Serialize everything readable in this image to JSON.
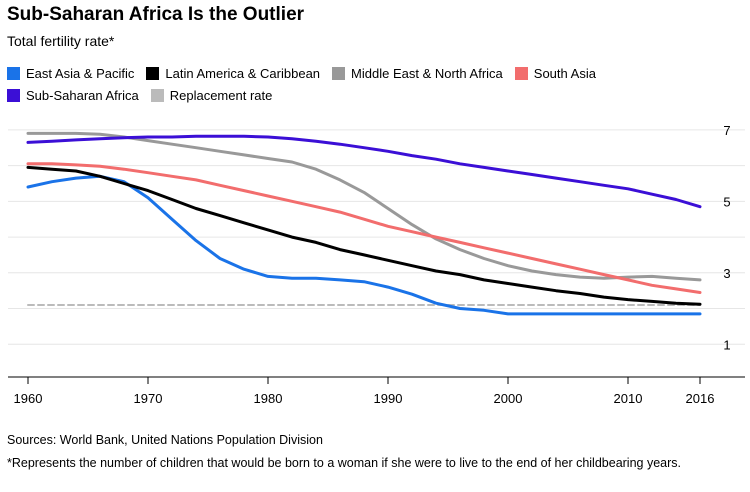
{
  "title": "Sub-Saharan Africa Is the Outlier",
  "subtitle": "Total fertility rate*",
  "source": "Sources: World Bank, United Nations Population Division",
  "footnote": "*Represents the number of children that would be born to a woman if she were to live to the end of her childbearing years.",
  "chart_data": {
    "type": "line",
    "title": "Sub-Saharan Africa Is the Outlier",
    "ylabel": "Total fertility rate*",
    "xlabel": "",
    "xlim": [
      1960,
      2016
    ],
    "ylim": [
      0,
      7.5
    ],
    "x_ticks": [
      1960,
      1970,
      1980,
      1990,
      2000,
      2010,
      2016
    ],
    "y_ticks": [
      1,
      3,
      5,
      7
    ],
    "grid": true,
    "legend_position": "top",
    "series": [
      {
        "name": "East Asia & Pacific",
        "color": "#1a73e8",
        "style": "solid",
        "x": [
          1960,
          1962,
          1964,
          1966,
          1968,
          1970,
          1972,
          1974,
          1976,
          1978,
          1980,
          1982,
          1984,
          1986,
          1988,
          1990,
          1992,
          1994,
          1996,
          1998,
          2000,
          2005,
          2010,
          2016
        ],
        "y": [
          5.4,
          5.55,
          5.65,
          5.7,
          5.55,
          5.1,
          4.5,
          3.9,
          3.4,
          3.1,
          2.9,
          2.85,
          2.85,
          2.8,
          2.75,
          2.6,
          2.4,
          2.15,
          2.0,
          1.95,
          1.85,
          1.85,
          1.85,
          1.85
        ]
      },
      {
        "name": "Latin America & Caribbean",
        "color": "#000000",
        "style": "solid",
        "x": [
          1960,
          1962,
          1964,
          1966,
          1968,
          1970,
          1972,
          1974,
          1976,
          1978,
          1980,
          1982,
          1984,
          1986,
          1988,
          1990,
          1992,
          1994,
          1996,
          1998,
          2000,
          2002,
          2004,
          2006,
          2008,
          2010,
          2012,
          2014,
          2016
        ],
        "y": [
          5.95,
          5.9,
          5.85,
          5.7,
          5.5,
          5.3,
          5.05,
          4.8,
          4.6,
          4.4,
          4.2,
          4.0,
          3.85,
          3.65,
          3.5,
          3.35,
          3.2,
          3.05,
          2.95,
          2.8,
          2.7,
          2.6,
          2.5,
          2.42,
          2.32,
          2.25,
          2.2,
          2.15,
          2.12
        ]
      },
      {
        "name": "Middle East & North Africa",
        "color": "#999999",
        "style": "solid",
        "x": [
          1960,
          1962,
          1964,
          1966,
          1968,
          1970,
          1972,
          1974,
          1976,
          1978,
          1980,
          1982,
          1984,
          1986,
          1988,
          1990,
          1992,
          1994,
          1996,
          1998,
          2000,
          2002,
          2004,
          2006,
          2008,
          2010,
          2012,
          2014,
          2016
        ],
        "y": [
          6.9,
          6.9,
          6.9,
          6.88,
          6.8,
          6.7,
          6.6,
          6.5,
          6.4,
          6.3,
          6.2,
          6.1,
          5.9,
          5.6,
          5.25,
          4.8,
          4.35,
          3.95,
          3.65,
          3.4,
          3.2,
          3.05,
          2.95,
          2.88,
          2.85,
          2.88,
          2.9,
          2.85,
          2.8
        ]
      },
      {
        "name": "South Asia",
        "color": "#f26d6d",
        "style": "solid",
        "x": [
          1960,
          1962,
          1964,
          1966,
          1968,
          1970,
          1972,
          1974,
          1976,
          1978,
          1980,
          1982,
          1984,
          1986,
          1988,
          1990,
          1992,
          1994,
          1996,
          1998,
          2000,
          2002,
          2004,
          2006,
          2008,
          2010,
          2012,
          2014,
          2016
        ],
        "y": [
          6.05,
          6.05,
          6.02,
          5.98,
          5.9,
          5.8,
          5.7,
          5.6,
          5.45,
          5.3,
          5.15,
          5.0,
          4.85,
          4.7,
          4.5,
          4.3,
          4.15,
          4.0,
          3.85,
          3.7,
          3.55,
          3.4,
          3.25,
          3.1,
          2.95,
          2.8,
          2.65,
          2.55,
          2.45
        ]
      },
      {
        "name": "Sub-Saharan Africa",
        "color": "#3b0fd6",
        "style": "solid",
        "x": [
          1960,
          1962,
          1964,
          1966,
          1968,
          1970,
          1972,
          1974,
          1976,
          1978,
          1980,
          1982,
          1984,
          1986,
          1988,
          1990,
          1992,
          1994,
          1996,
          1998,
          2000,
          2002,
          2004,
          2006,
          2008,
          2010,
          2012,
          2014,
          2016
        ],
        "y": [
          6.65,
          6.68,
          6.72,
          6.75,
          6.78,
          6.8,
          6.8,
          6.82,
          6.82,
          6.82,
          6.8,
          6.75,
          6.68,
          6.6,
          6.5,
          6.4,
          6.28,
          6.18,
          6.05,
          5.95,
          5.85,
          5.75,
          5.65,
          5.55,
          5.45,
          5.35,
          5.2,
          5.05,
          4.85
        ]
      },
      {
        "name": "Replacement rate",
        "color": "#bbbbbb",
        "style": "dashed",
        "x": [
          1960,
          2016
        ],
        "y": [
          2.1,
          2.1
        ]
      }
    ]
  }
}
